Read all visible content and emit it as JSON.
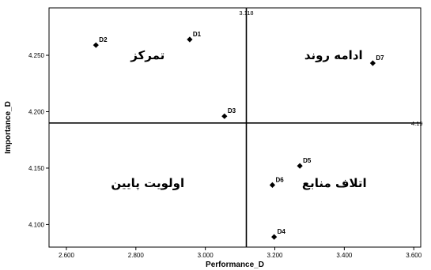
{
  "chart_data": {
    "type": "scatter",
    "xlabel": "Performance_D",
    "ylabel": "Importance_D",
    "xlim": [
      2.55,
      3.62
    ],
    "ylim": [
      4.08,
      4.292
    ],
    "x_ticks": [
      2.6,
      2.8,
      3.0,
      3.2,
      3.4,
      3.6
    ],
    "x_tick_labels": [
      "2.600",
      "2.800",
      "3.000",
      "3.200",
      "3.400",
      "3.600"
    ],
    "y_ticks": [
      4.1,
      4.15,
      4.2,
      4.25
    ],
    "y_tick_labels": [
      "4.100",
      "4.150",
      "4.200",
      "4.250"
    ],
    "reference_lines": {
      "x": 3.118,
      "x_label": "3.118",
      "y": 4.19,
      "y_label": "4.19"
    },
    "points": [
      {
        "label": "D1",
        "x": 2.955,
        "y": 4.264
      },
      {
        "label": "D2",
        "x": 2.685,
        "y": 4.259
      },
      {
        "label": "D3",
        "x": 3.055,
        "y": 4.196
      },
      {
        "label": "D4",
        "x": 3.198,
        "y": 4.089
      },
      {
        "label": "D5",
        "x": 3.272,
        "y": 4.152
      },
      {
        "label": "D6",
        "x": 3.193,
        "y": 4.135
      },
      {
        "label": "D7",
        "x": 3.482,
        "y": 4.243
      }
    ],
    "quadrant_labels": {
      "top_left": "تمرکز",
      "top_right": "ادامه روند",
      "bottom_left": "اولویت پایین",
      "bottom_right": "اتلاف منابع"
    },
    "grid": false,
    "marker": "diamond",
    "colors": {
      "marker": "#000000",
      "axis": "#000000",
      "background": "#ffffff"
    }
  }
}
